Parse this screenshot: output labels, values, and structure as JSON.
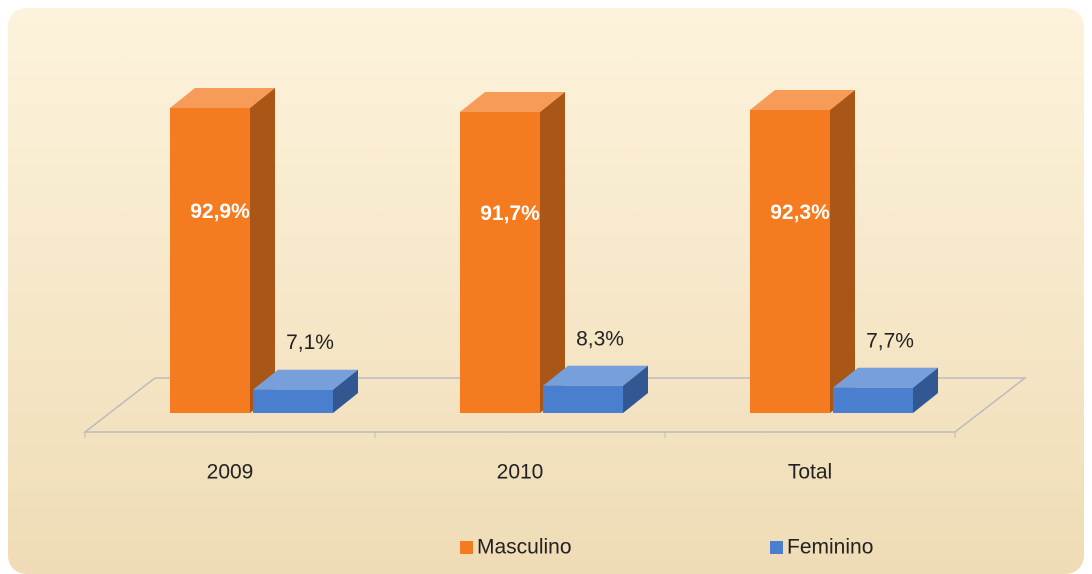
{
  "chart_data": {
    "type": "bar3d",
    "categories": [
      "2009",
      "2010",
      "Total"
    ],
    "series": [
      {
        "name": "Masculino",
        "color": "#f47b20",
        "values": [
          92.9,
          91.7,
          92.3
        ],
        "value_labels": [
          "92,9%",
          "91,7%",
          "92,3%"
        ]
      },
      {
        "name": "Feminino",
        "color": "#4a7fd0",
        "values": [
          7.1,
          8.3,
          7.7
        ],
        "value_labels": [
          "7,1%",
          "8,3%",
          "7,7%"
        ]
      }
    ],
    "legend": "bottom"
  }
}
